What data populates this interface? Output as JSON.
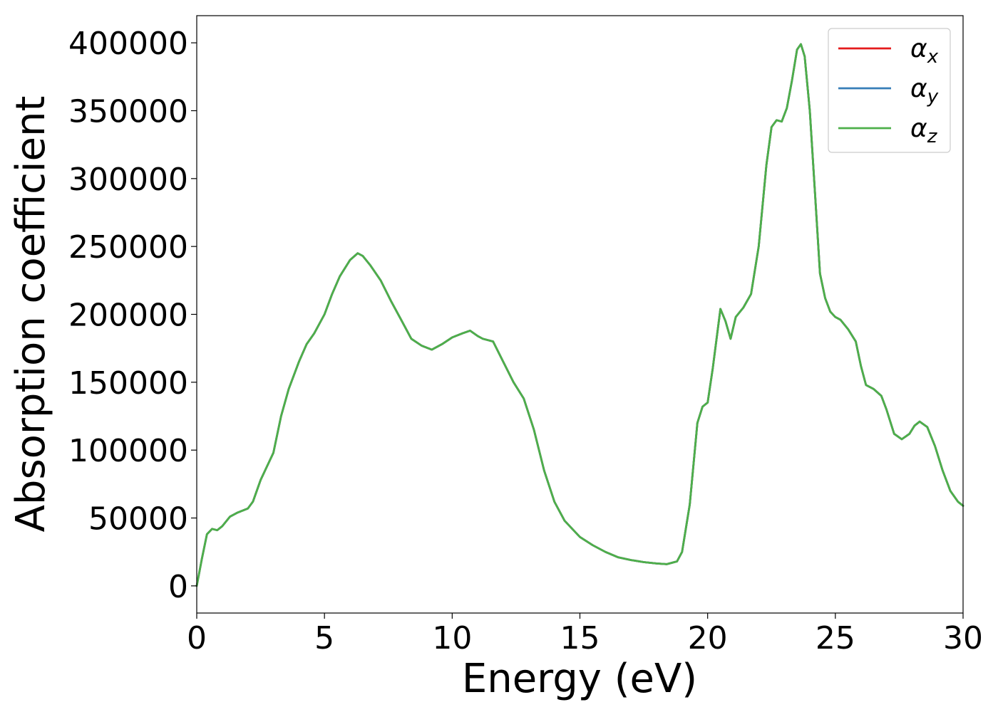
{
  "chart_data": {
    "type": "line",
    "title": "",
    "xlabel": "Energy (eV)",
    "ylabel": "Absorption coefficient",
    "xlim": [
      0,
      30
    ],
    "ylim": [
      -20000,
      420000
    ],
    "x_ticks": [
      0,
      5,
      10,
      15,
      20,
      25,
      30
    ],
    "y_ticks": [
      0,
      50000,
      100000,
      150000,
      200000,
      250000,
      300000,
      350000,
      400000
    ],
    "grid": false,
    "legend_position": "top-right",
    "legend": [
      {
        "base": "α",
        "sub": "x",
        "color": "#e41a1c"
      },
      {
        "base": "α",
        "sub": "y",
        "color": "#377eb8"
      },
      {
        "base": "α",
        "sub": "z",
        "color": "#4daf4a"
      }
    ],
    "series": [
      {
        "color": "#e41a1c",
        "ref": 2
      },
      {
        "color": "#377eb8",
        "ref": 2
      },
      {
        "color": "#4daf4a",
        "x": [
          0,
          0.2,
          0.4,
          0.6,
          0.8,
          1.0,
          1.3,
          1.6,
          2.0,
          2.2,
          2.5,
          2.8,
          3.0,
          3.3,
          3.6,
          4.0,
          4.3,
          4.6,
          5.0,
          5.3,
          5.6,
          6.0,
          6.3,
          6.5,
          6.8,
          7.2,
          7.6,
          8.0,
          8.4,
          8.8,
          9.2,
          9.6,
          10.0,
          10.4,
          10.7,
          11.0,
          11.2,
          11.6,
          12.0,
          12.4,
          12.8,
          13.2,
          13.6,
          14.0,
          14.4,
          14.8,
          15.0,
          15.5,
          16.0,
          16.5,
          17.0,
          17.5,
          18.0,
          18.4,
          18.8,
          19.0,
          19.3,
          19.6,
          19.8,
          20.0,
          20.2,
          20.5,
          20.7,
          20.9,
          21.1,
          21.4,
          21.7,
          22.0,
          22.3,
          22.5,
          22.7,
          22.9,
          23.1,
          23.3,
          23.5,
          23.65,
          23.8,
          24.0,
          24.2,
          24.4,
          24.6,
          24.8,
          25.0,
          25.2,
          25.5,
          25.8,
          26.0,
          26.2,
          26.5,
          26.8,
          27.0,
          27.3,
          27.6,
          27.9,
          28.1,
          28.3,
          28.6,
          28.9,
          29.2,
          29.5,
          29.8,
          30.0
        ],
        "y": [
          0,
          20000,
          38000,
          42000,
          41000,
          44000,
          51000,
          54000,
          57000,
          62000,
          78000,
          90000,
          98000,
          125000,
          145000,
          165000,
          178000,
          186000,
          200000,
          215000,
          228000,
          240000,
          245000,
          243000,
          236000,
          225000,
          210000,
          196000,
          182000,
          177000,
          174000,
          178000,
          183000,
          186000,
          188000,
          184000,
          182000,
          180000,
          165000,
          150000,
          138000,
          115000,
          85000,
          62000,
          48000,
          40000,
          36000,
          30000,
          25000,
          21000,
          19000,
          17500,
          16500,
          16000,
          18000,
          25000,
          60000,
          120000,
          132000,
          135000,
          160000,
          204000,
          195000,
          182000,
          198000,
          205000,
          215000,
          250000,
          310000,
          338000,
          343000,
          342000,
          352000,
          372000,
          395000,
          399000,
          390000,
          350000,
          290000,
          230000,
          212000,
          202000,
          198000,
          196000,
          189000,
          180000,
          162000,
          148000,
          145000,
          140000,
          130000,
          112000,
          108000,
          112000,
          118000,
          121000,
          117000,
          103000,
          85000,
          70000,
          62000,
          59000
        ]
      }
    ]
  }
}
